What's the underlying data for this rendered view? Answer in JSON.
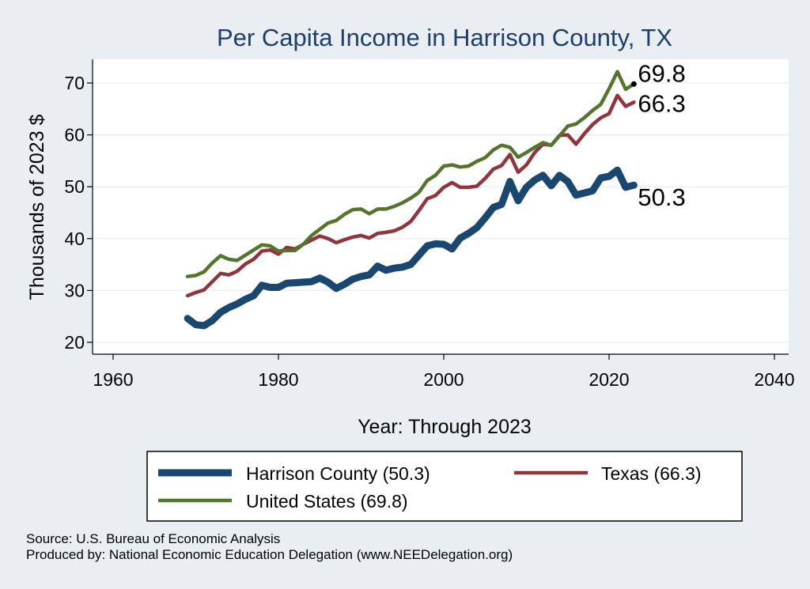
{
  "chart_data": {
    "type": "line",
    "title": "Per Capita Income in Harrison County, TX",
    "xlabel": "Year: Through 2023",
    "ylabel": "Thousands of 2023 $",
    "xlim": [
      1960,
      2040
    ],
    "ylim": [
      20,
      75
    ],
    "x_ticks": [
      1960,
      1980,
      2000,
      2020,
      2040
    ],
    "y_ticks": [
      20,
      30,
      40,
      50,
      60,
      70
    ],
    "x_tick_labels": [
      "1960",
      "1980",
      "2000",
      "2020",
      "2040"
    ],
    "y_tick_labels": [
      "20",
      "30",
      "40",
      "50",
      "60",
      "70"
    ],
    "x": [
      1969,
      1970,
      1971,
      1972,
      1973,
      1974,
      1975,
      1976,
      1977,
      1978,
      1979,
      1980,
      1981,
      1982,
      1983,
      1984,
      1985,
      1986,
      1987,
      1988,
      1989,
      1990,
      1991,
      1992,
      1993,
      1994,
      1995,
      1996,
      1997,
      1998,
      1999,
      2000,
      2001,
      2002,
      2003,
      2004,
      2005,
      2006,
      2007,
      2008,
      2009,
      2010,
      2011,
      2012,
      2013,
      2014,
      2015,
      2016,
      2017,
      2018,
      2019,
      2020,
      2021,
      2022,
      2023
    ],
    "series": [
      {
        "name": "Harrison County",
        "color": "#1a476f",
        "end_label": "50.3",
        "values": [
          24.6,
          23.4,
          23.2,
          24.2,
          25.8,
          26.7,
          27.4,
          28.3,
          29.0,
          31.0,
          30.6,
          30.6,
          31.4,
          31.5,
          31.6,
          31.7,
          32.4,
          31.6,
          30.4,
          31.2,
          32.2,
          32.7,
          33.0,
          34.7,
          33.9,
          34.3,
          34.5,
          35.0,
          36.8,
          38.6,
          39.0,
          38.9,
          38.0,
          40.1,
          41.0,
          42.1,
          44.0,
          46.0,
          46.6,
          51.0,
          47.3,
          49.9,
          51.3,
          52.2,
          50.2,
          52.2,
          51.0,
          48.4,
          48.8,
          49.2,
          51.7,
          52.0,
          53.2,
          49.9,
          50.3
        ]
      },
      {
        "name": "Texas",
        "color": "#90353b",
        "end_label": "66.3",
        "values": [
          29.0,
          29.6,
          30.1,
          31.7,
          33.3,
          33.0,
          33.7,
          35.1,
          36.0,
          37.6,
          37.8,
          37.0,
          38.3,
          38.0,
          38.9,
          39.7,
          40.5,
          40.0,
          39.2,
          39.8,
          40.3,
          40.6,
          40.1,
          41.0,
          41.2,
          41.5,
          42.2,
          43.3,
          45.4,
          47.7,
          48.3,
          49.9,
          50.8,
          49.9,
          49.9,
          50.1,
          51.6,
          53.4,
          54.1,
          56.2,
          52.8,
          54.2,
          56.6,
          58.2,
          58.0,
          59.9,
          60.0,
          58.2,
          60.2,
          62.0,
          63.3,
          64.1,
          67.6,
          65.5,
          66.3
        ]
      },
      {
        "name": "United States",
        "color": "#55752f",
        "end_label": "69.8",
        "values": [
          32.7,
          32.9,
          33.6,
          35.3,
          36.7,
          36.0,
          35.8,
          36.8,
          37.8,
          38.8,
          38.6,
          37.6,
          37.7,
          37.7,
          38.9,
          40.6,
          41.8,
          43.0,
          43.5,
          44.7,
          45.6,
          45.7,
          44.8,
          45.7,
          45.7,
          46.2,
          46.9,
          47.8,
          48.9,
          51.2,
          52.2,
          54.0,
          54.2,
          53.8,
          54.0,
          54.9,
          55.6,
          57.1,
          58.0,
          57.6,
          55.7,
          56.6,
          57.6,
          58.5,
          58.0,
          59.8,
          61.7,
          62.1,
          63.3,
          64.7,
          65.9,
          68.9,
          72.2,
          68.8,
          69.8
        ]
      }
    ],
    "legend": {
      "position": "bottom",
      "entries": [
        "Harrison County (50.3)",
        "Texas (66.3)",
        "United States (69.8)"
      ]
    }
  },
  "source": {
    "line1": "Source: U.S. Bureau of Economic Analysis",
    "line2": "Produced by: National Economic Education Delegation (www.NEEDelegation.org)"
  }
}
